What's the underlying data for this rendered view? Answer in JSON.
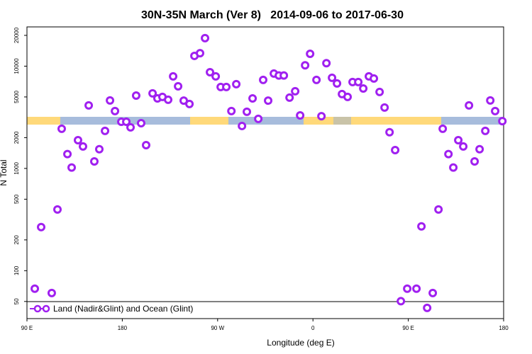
{
  "chart_data": {
    "type": "scatter",
    "title": "30N-35N March (Ver 8)   2014-09-06 to 2017-06-30",
    "x_label": "Longitude (deg E)",
    "y_label": "N Total",
    "log_y": true,
    "xlim": [
      90,
      540
    ],
    "ylim": [
      34,
      24200
    ],
    "xticks": [
      {
        "value": 90,
        "label": "90 E"
      },
      180,
      {
        "value": 270,
        "label": "90 W"
      },
      {
        "value": 360,
        "label": "0"
      },
      {
        "value": 450,
        "label": "90 E"
      },
      {
        "value": 540,
        "label": "180"
      }
    ],
    "yticks": [
      50,
      100,
      200,
      500,
      1000,
      2000,
      5000,
      10000,
      20000
    ],
    "legend_position": "lower left",
    "series": [
      {
        "name": "Land (Nadir&Glint) and Ocean (Glint)",
        "color": "#a020f0",
        "x": [
          97.4,
          103.4,
          113.4,
          118.8,
          122.8,
          128.2,
          132.2,
          138.2,
          142.9,
          148.3,
          153.6,
          158.3,
          163.7,
          168.4,
          173.1,
          179.1,
          183.8,
          187.8,
          193.1,
          197.8,
          202.5,
          208.6,
          213.2,
          217.9,
          223.3,
          228.0,
          232.7,
          238.0,
          243.4,
          248.1,
          253.4,
          258.1,
          262.8,
          268.2,
          272.9,
          278.2,
          283.0,
          287.6,
          293.0,
          297.6,
          303.0,
          308.4,
          313.0,
          317.7,
          323.1,
          327.8,
          332.5,
          337.9,
          343.2,
          347.9,
          352.6,
          357.3,
          363.3,
          368.0,
          372.7,
          378.0,
          382.7,
          387.4,
          392.7,
          397.4,
          402.8,
          407.5,
          412.8,
          417.5,
          422.9,
          427.6,
          432.3,
          437.6,
          443.0,
          449.0,
          457.7,
          462.4,
          467.8,
          473.1,
          478.5,
          482.5,
          487.9,
          492.5,
          497.2,
          501.9,
          507.3,
          512.6,
          517.3,
          522.7,
          527.4,
          532.0,
          538.8
        ],
        "values": [
          66.7,
          267,
          60.5,
          397,
          2440,
          1380,
          1020,
          1890,
          1640,
          4130,
          1170,
          1540,
          2330,
          4620,
          3640,
          2860,
          2860,
          2520,
          5160,
          2770,
          1690,
          5420,
          4840,
          5000,
          4690,
          7940,
          6350,
          4600,
          4270,
          12600,
          13400,
          18800,
          8730,
          7940,
          6250,
          6250,
          3640,
          6670,
          2600,
          3580,
          4840,
          3050,
          7330,
          4600,
          8460,
          8100,
          8100,
          4920,
          5680,
          3300,
          10200,
          13200,
          7330,
          3240,
          10700,
          7690,
          6770,
          5330,
          5000,
          6990,
          6990,
          6050,
          7940,
          7570,
          5590,
          3940,
          2260,
          1510,
          50.3,
          66.7,
          66.7,
          271,
          43.3,
          60.5,
          397,
          2440,
          1380,
          1020,
          1890,
          1640,
          4130,
          1170,
          1540,
          2330,
          4620,
          3640,
          2900
        ]
      }
    ]
  }
}
